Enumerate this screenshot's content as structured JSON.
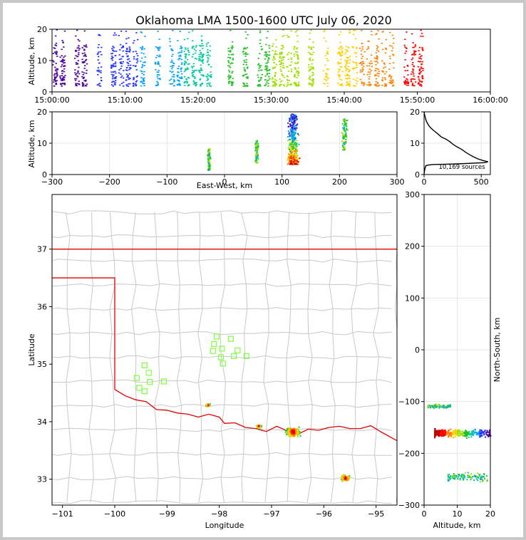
{
  "chart_data": [
    {
      "id": "time_height",
      "type": "scatter",
      "title": "Oklahoma LMA 1500-1600 UTC July 06, 2020",
      "xlabel": "",
      "ylabel": "Altitude, km",
      "x_tick_labels": [
        "15:00:00",
        "15:10:00",
        "15:20:00",
        "15:30:00",
        "15:40:00",
        "15:50:00",
        "16:00:00"
      ],
      "x_range_minutes": [
        0,
        60
      ],
      "y_ticks": [
        0,
        10,
        20
      ],
      "ylim": [
        0,
        20
      ],
      "active_minutes": [
        0,
        1,
        3,
        4,
        6,
        8,
        9,
        10,
        11,
        12,
        14,
        16,
        17,
        18,
        19,
        20,
        21,
        24,
        26,
        28,
        29,
        30,
        31,
        32,
        33,
        35,
        37,
        39,
        40,
        41,
        42,
        43,
        44,
        45,
        46,
        48,
        49,
        50
      ]
    },
    {
      "id": "east_west_altitude",
      "type": "scatter",
      "xlabel": "East-West, km",
      "ylabel": "Altitude, km",
      "x_ticks": [
        -300,
        -200,
        -100,
        0,
        100,
        200,
        300
      ],
      "xlim": [
        -300,
        300
      ],
      "y_ticks": [
        0,
        10,
        20
      ],
      "ylim": [
        0,
        20
      ],
      "clusters": [
        {
          "x": -28,
          "x_spread": 3,
          "y_low": 1.5,
          "y_high": 8.5
        },
        {
          "x": 55,
          "x_spread": 4,
          "y_low": 4,
          "y_high": 11
        },
        {
          "x": 118,
          "x_spread": 9,
          "y_low": 3.5,
          "y_high": 19.5
        },
        {
          "x": 208,
          "x_spread": 7,
          "y_low": 8,
          "y_high": 18
        }
      ]
    },
    {
      "id": "altitude_histogram",
      "type": "line",
      "x_ticks": [
        0,
        500
      ],
      "xlim": [
        0,
        580
      ],
      "y_ticks": [
        0,
        10,
        20
      ],
      "ylim": [
        0,
        20
      ],
      "annotation": "10,169 sources",
      "profile": [
        [
          0,
          20
        ],
        [
          5,
          19
        ],
        [
          12,
          18
        ],
        [
          20,
          17
        ],
        [
          35,
          16
        ],
        [
          55,
          15
        ],
        [
          85,
          14
        ],
        [
          120,
          13
        ],
        [
          150,
          12
        ],
        [
          190,
          11.3
        ],
        [
          225,
          10.5
        ],
        [
          255,
          9.6
        ],
        [
          290,
          8.8
        ],
        [
          330,
          8
        ],
        [
          360,
          7.2
        ],
        [
          395,
          6.4
        ],
        [
          430,
          5.7
        ],
        [
          470,
          5
        ],
        [
          520,
          4.4
        ],
        [
          560,
          4.1
        ],
        [
          530,
          3.8
        ],
        [
          300,
          3.4
        ],
        [
          80,
          3.2
        ],
        [
          30,
          3
        ],
        [
          15,
          2.8
        ],
        [
          8,
          2
        ],
        [
          3,
          1
        ],
        [
          0,
          0
        ]
      ]
    },
    {
      "id": "plan_view",
      "type": "scatter",
      "xlabel": "Longitude",
      "ylabel": "Latitude",
      "x_ticks": [
        -101,
        -100,
        -99,
        -98,
        -97,
        -96,
        -95
      ],
      "xlim": [
        -101.2,
        -94.6
      ],
      "y_ticks": [
        33,
        34,
        35,
        36,
        37
      ],
      "ylim": [
        32.55,
        37.95
      ],
      "stations": [
        [
          -98.05,
          35.48
        ],
        [
          -98.1,
          35.35
        ],
        [
          -98.12,
          35.23
        ],
        [
          -97.95,
          35.27
        ],
        [
          -97.78,
          35.44
        ],
        [
          -97.72,
          35.14
        ],
        [
          -97.65,
          35.24
        ],
        [
          -97.48,
          35.14
        ],
        [
          -97.97,
          35.12
        ],
        [
          -97.93,
          35.01
        ],
        [
          -99.43,
          34.98
        ],
        [
          -99.35,
          34.85
        ],
        [
          -99.58,
          34.76
        ],
        [
          -99.33,
          34.69
        ],
        [
          -99.06,
          34.7
        ],
        [
          -99.53,
          34.59
        ],
        [
          -99.43,
          34.53
        ]
      ],
      "clusters": [
        {
          "lon": -98.23,
          "lat": 34.3,
          "spread": 0.05
        },
        {
          "lon": -97.25,
          "lat": 33.93,
          "spread": 0.06
        },
        {
          "lon": -96.6,
          "lat": 33.83,
          "spread": 0.18
        },
        {
          "lon": -95.6,
          "lat": 33.03,
          "spread": 0.12
        }
      ]
    },
    {
      "id": "altitude_north_south",
      "type": "scatter",
      "xlabel": "Altitude, km",
      "ylabel": "North-South, km",
      "x_ticks": [
        0,
        10,
        20
      ],
      "xlim": [
        0,
        20
      ],
      "y_ticks": [
        300,
        200,
        100,
        0,
        -100,
        -200,
        -300
      ],
      "ylim": [
        -300,
        300
      ],
      "clusters": [
        {
          "ns": -108,
          "ns_spread": 5,
          "alt_low": 1,
          "alt_high": 8
        },
        {
          "ns": -160,
          "ns_spread": 10,
          "alt_low": 3,
          "alt_high": 20
        },
        {
          "ns": -245,
          "ns_spread": 12,
          "alt_low": 7,
          "alt_high": 19
        }
      ]
    }
  ]
}
